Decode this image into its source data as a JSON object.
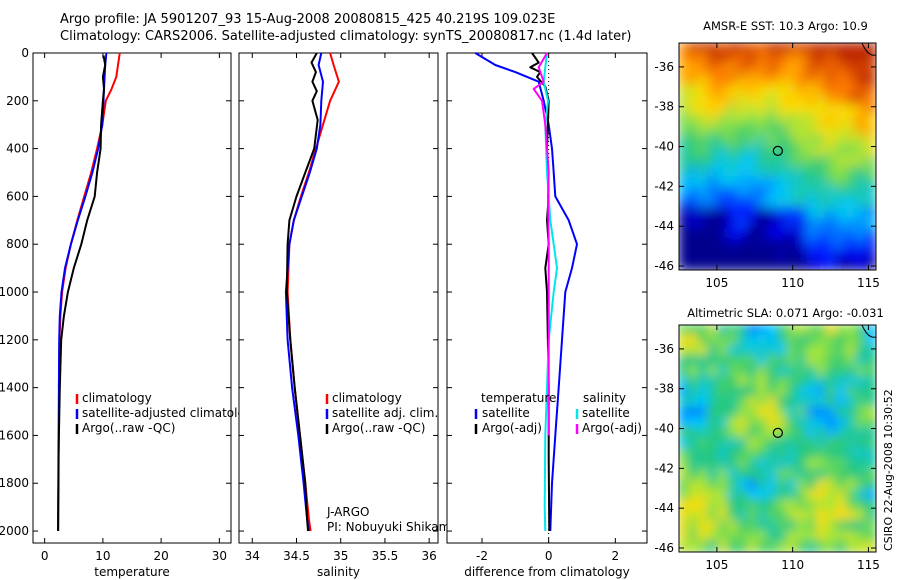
{
  "header": {
    "line1": "Argo profile: JA 5901207_93 15-Aug-2008 20080815_425 40.219S 109.023E",
    "line2": "Climatology: CARS2006. Satellite-adjusted climatology: synTS_20080817.nc (1.4d later)"
  },
  "colors": {
    "climatology": "#ff0000",
    "satellite": "#0000ff",
    "argo": "#000000",
    "satellite_salinity": "#00e5ee",
    "argo_adj_salinity": "#ff00ff"
  },
  "chart_data": [
    {
      "type": "line",
      "id": "temperature",
      "xlabel": "temperature",
      "ylabel": "",
      "xlim": [
        -2,
        32
      ],
      "ylim": [
        2050,
        0
      ],
      "x_ticks": [
        0,
        10,
        20,
        30
      ],
      "y_ticks": [
        0,
        200,
        400,
        600,
        800,
        1000,
        1200,
        1400,
        1600,
        1800,
        2000
      ],
      "legend": {
        "placement": "lower-right",
        "entries": [
          "climatology",
          "satellite-adjusted climatology",
          "Argo(..raw -QC)"
        ]
      },
      "series": [
        {
          "name": "climatology",
          "color": "#ff0000",
          "x": [
            12.9,
            12.6,
            12.3,
            11.5,
            10.5,
            9.9,
            9.0,
            8.0,
            6.8,
            5.6,
            4.5,
            3.6,
            3.0,
            2.7,
            2.55,
            2.45
          ],
          "y": [
            0,
            50,
            100,
            150,
            200,
            300,
            400,
            500,
            600,
            700,
            800,
            900,
            1000,
            1100,
            1200,
            1400
          ]
        },
        {
          "name": "satellite-adjusted climatology",
          "color": "#0000ff",
          "x": [
            10.6,
            10.4,
            10.3,
            10.2,
            10.1,
            9.9,
            9.2,
            8.2,
            7.0,
            5.7,
            4.5,
            3.5,
            2.9,
            2.6,
            2.5,
            2.45,
            2.4,
            2.35,
            2.3
          ],
          "y": [
            0,
            50,
            100,
            150,
            200,
            300,
            400,
            500,
            600,
            700,
            800,
            900,
            1000,
            1100,
            1200,
            1400,
            1600,
            1800,
            2000
          ]
        },
        {
          "name": "Argo(..raw -QC)",
          "color": "#000000",
          "x": [
            10.1,
            10.4,
            10.0,
            10.2,
            10.0,
            9.7,
            9.6,
            9.0,
            8.6,
            7.3,
            6.3,
            5.0,
            4.0,
            3.3,
            2.85,
            2.6,
            2.45,
            2.4,
            2.38,
            2.35,
            2.33
          ],
          "y": [
            10,
            50,
            100,
            150,
            200,
            300,
            400,
            500,
            600,
            700,
            800,
            900,
            1000,
            1100,
            1200,
            1400,
            1600,
            1700,
            1800,
            1900,
            2000
          ]
        }
      ],
      "annotations": []
    },
    {
      "type": "line",
      "id": "salinity",
      "xlabel": "salinity",
      "ylabel": "",
      "xlim": [
        33.85,
        36.1
      ],
      "ylim": [
        2050,
        0
      ],
      "x_ticks": [
        34,
        34.5,
        35,
        35.5,
        36
      ],
      "y_ticks": [
        0,
        200,
        400,
        600,
        800,
        1000,
        1200,
        1400,
        1600,
        1800,
        2000
      ],
      "legend": {
        "placement": "lower-right",
        "entries": [
          "climatology",
          "satellite adj. clim.",
          "Argo(..raw -QC)"
        ]
      },
      "series": [
        {
          "name": "climatology",
          "color": "#ff0000",
          "x": [
            34.88,
            34.92,
            34.98,
            34.88,
            34.8,
            34.72,
            34.64,
            34.55,
            34.47,
            34.42,
            34.4,
            34.43,
            34.48,
            34.54,
            34.6,
            34.64,
            34.66
          ],
          "y": [
            0,
            50,
            120,
            200,
            300,
            400,
            500,
            600,
            700,
            800,
            1000,
            1200,
            1400,
            1600,
            1800,
            1950,
            2000
          ]
        },
        {
          "name": "satellite adj. clim.",
          "color": "#0000ff",
          "x": [
            34.78,
            34.75,
            34.8,
            34.78,
            34.77,
            34.73,
            34.65,
            34.56,
            34.47,
            34.42,
            34.38,
            34.4,
            34.45,
            34.52,
            34.58,
            34.62,
            34.64
          ],
          "y": [
            0,
            50,
            120,
            200,
            300,
            400,
            500,
            600,
            700,
            800,
            1000,
            1200,
            1400,
            1600,
            1800,
            1950,
            2000
          ]
        },
        {
          "name": "Argo(..raw -QC)",
          "color": "#000000",
          "x": [
            34.73,
            34.67,
            34.72,
            34.68,
            34.73,
            34.68,
            34.74,
            34.7,
            34.6,
            34.5,
            34.42,
            34.4,
            34.39,
            34.43,
            34.48,
            34.54,
            34.6,
            34.62,
            34.63
          ],
          "y": [
            0,
            40,
            80,
            120,
            160,
            200,
            280,
            400,
            500,
            600,
            700,
            800,
            1000,
            1200,
            1400,
            1600,
            1800,
            1950,
            2000
          ]
        }
      ],
      "annotations": [
        "J-ARGO",
        "PI: Nobuyuki Shikama"
      ]
    },
    {
      "type": "line",
      "id": "difference",
      "xlabel": "difference from climatology",
      "ylabel": "",
      "xlim": [
        -3.05,
        2.95
      ],
      "ylim": [
        2050,
        0
      ],
      "x_ticks": [
        -2,
        0,
        2
      ],
      "y_ticks": [
        0,
        200,
        400,
        600,
        800,
        1000,
        1200,
        1400,
        1600,
        1800,
        2000
      ],
      "zero_line": "dotted",
      "legend": {
        "placement": "lower-right",
        "entries": [
          "temperature",
          "satellite",
          "Argo(-adj)",
          "salinity",
          "satellite",
          "Argo(-adj)"
        ]
      },
      "series": [
        {
          "name": "satellite",
          "variable": "temperature",
          "color": "#0000ff",
          "x": [
            -2.2,
            -1.6,
            -1.0,
            -0.3,
            -0.15,
            0.0,
            0.1,
            0.15,
            0.2,
            0.6,
            0.85,
            0.7,
            0.5,
            0.4,
            0.3,
            0.2,
            0.1,
            0.05
          ],
          "y": [
            0,
            50,
            80,
            120,
            200,
            300,
            400,
            500,
            600,
            700,
            800,
            900,
            1000,
            1200,
            1400,
            1600,
            1800,
            2000
          ]
        },
        {
          "name": "Argo(-adj)",
          "variable": "temperature",
          "color": "#000000",
          "x": [
            -0.5,
            -0.3,
            -0.55,
            -0.25,
            -0.35,
            -0.1,
            0.0,
            -0.05,
            0.0,
            -0.05,
            0.0,
            -0.1,
            -0.05,
            0.0,
            0.0,
            0.02
          ],
          "y": [
            0,
            40,
            60,
            80,
            100,
            140,
            200,
            400,
            600,
            700,
            800,
            900,
            1000,
            1400,
            1700,
            2000
          ]
        },
        {
          "name": "satellite",
          "variable": "salinity",
          "color": "#00e5ee",
          "x": [
            -0.05,
            -0.1,
            -0.15,
            -0.02,
            -0.1,
            -0.05,
            0.0,
            0.05,
            0.15,
            0.25,
            0.15,
            0.0,
            -0.1,
            -0.12,
            -0.1
          ],
          "y": [
            0,
            60,
            120,
            200,
            300,
            500,
            600,
            700,
            800,
            900,
            1000,
            1200,
            1600,
            1900,
            2000
          ]
        },
        {
          "name": "Argo(-adj)",
          "variable": "salinity",
          "color": "#ff00ff",
          "x": [
            -0.05,
            -0.3,
            -0.15,
            -0.45,
            -0.2,
            -0.1,
            -0.05,
            0.0,
            -0.02,
            0.0,
            0.0,
            0.0
          ],
          "y": [
            0,
            60,
            120,
            150,
            200,
            300,
            400,
            500,
            600,
            800,
            1200,
            1600
          ]
        }
      ],
      "annotations": []
    },
    {
      "type": "heatmap",
      "id": "sst_map",
      "title": "AMSR-E SST: 10.3 Argo: 10.9",
      "xlim": [
        102.5,
        115.5
      ],
      "ylim": [
        -46.2,
        -34.8
      ],
      "x_ticks": [
        105,
        110,
        115
      ],
      "y_ticks": [
        -36,
        -38,
        -40,
        -42,
        -44,
        -46
      ],
      "marker": {
        "lon": 109.023,
        "lat": -40.219
      }
    },
    {
      "type": "heatmap",
      "id": "sla_map",
      "title": "Altimetric SLA: 0.071 Argo: -0.031",
      "xlim": [
        102.5,
        115.5
      ],
      "ylim": [
        -46.2,
        -34.8
      ],
      "x_ticks": [
        105,
        110,
        115
      ],
      "y_ticks": [
        -36,
        -38,
        -40,
        -42,
        -44,
        -46
      ],
      "marker": {
        "lon": 109.023,
        "lat": -40.219
      }
    }
  ],
  "footer": {
    "credit": "CSIRO 22-Aug-2008 10:30:52"
  }
}
